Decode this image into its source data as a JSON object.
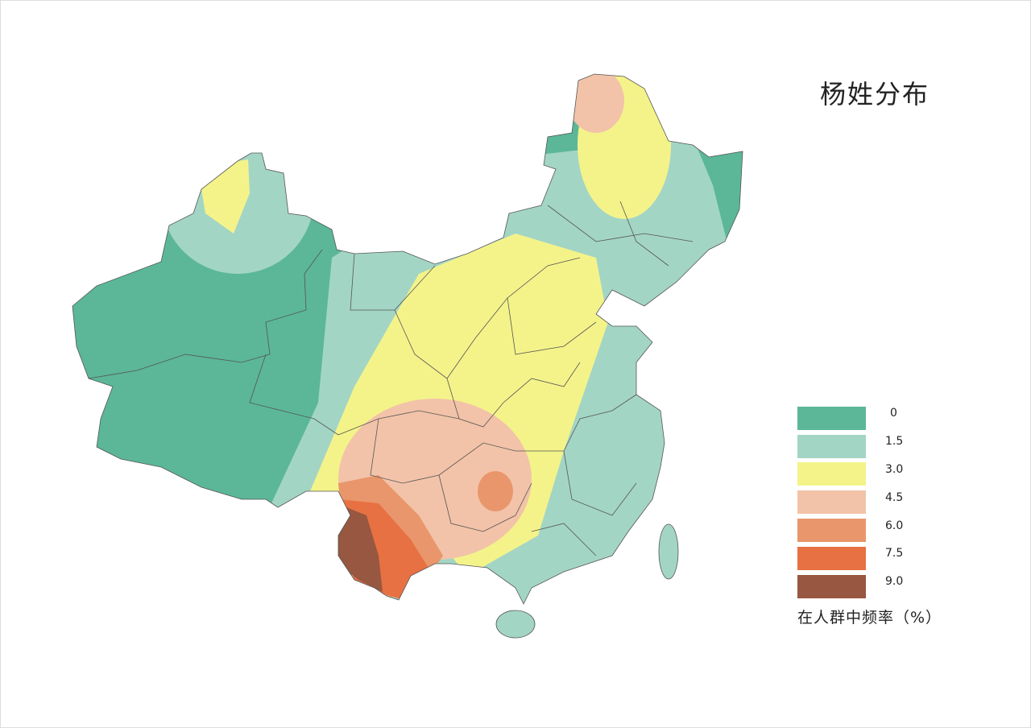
{
  "title": "杨姓分布",
  "legend": {
    "items": [
      {
        "label": "0",
        "color": "#5bb797"
      },
      {
        "label": "1.5",
        "color": "#a3d5c5"
      },
      {
        "label": "3.0",
        "color": "#f4f38a"
      },
      {
        "label": "4.5",
        "color": "#f2c3a8"
      },
      {
        "label": "6.0",
        "color": "#e9966c"
      },
      {
        "label": "7.5",
        "color": "#e77142"
      },
      {
        "label": "9.0",
        "color": "#975740"
      }
    ],
    "unit": "在人群中频率（%）"
  }
}
